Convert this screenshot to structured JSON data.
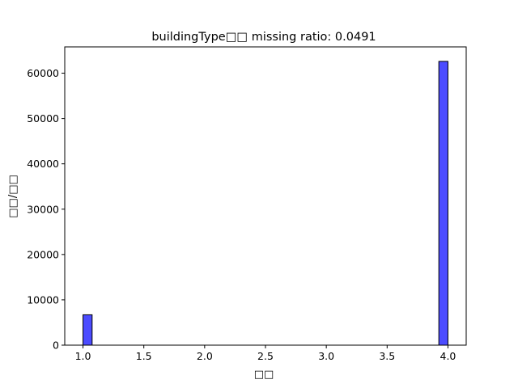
{
  "chart_data": {
    "type": "bar",
    "title": "buildingType□□  missing ratio: 0.0491",
    "xlabel": "□□",
    "ylabel": "□□/□□",
    "xlim": [
      0.85,
      4.15
    ],
    "ylim": [
      0,
      65800
    ],
    "xticks": [
      "1.0",
      "1.5",
      "2.0",
      "2.5",
      "3.0",
      "3.5",
      "4.0"
    ],
    "xtick_values": [
      1.0,
      1.5,
      2.0,
      2.5,
      3.0,
      3.5,
      4.0
    ],
    "yticks": [
      "0",
      "10000",
      "20000",
      "30000",
      "40000",
      "50000",
      "60000"
    ],
    "ytick_values": [
      0,
      10000,
      20000,
      30000,
      40000,
      50000,
      60000
    ],
    "bar_width": 0.075,
    "bars": [
      {
        "x": 1.0,
        "value": 6700
      },
      {
        "x": 3.925,
        "value": 62600
      }
    ],
    "bar_color": "#0000ff",
    "bar_opacity": 0.7,
    "edge_color": "#000000",
    "grid": false,
    "legend": false
  }
}
